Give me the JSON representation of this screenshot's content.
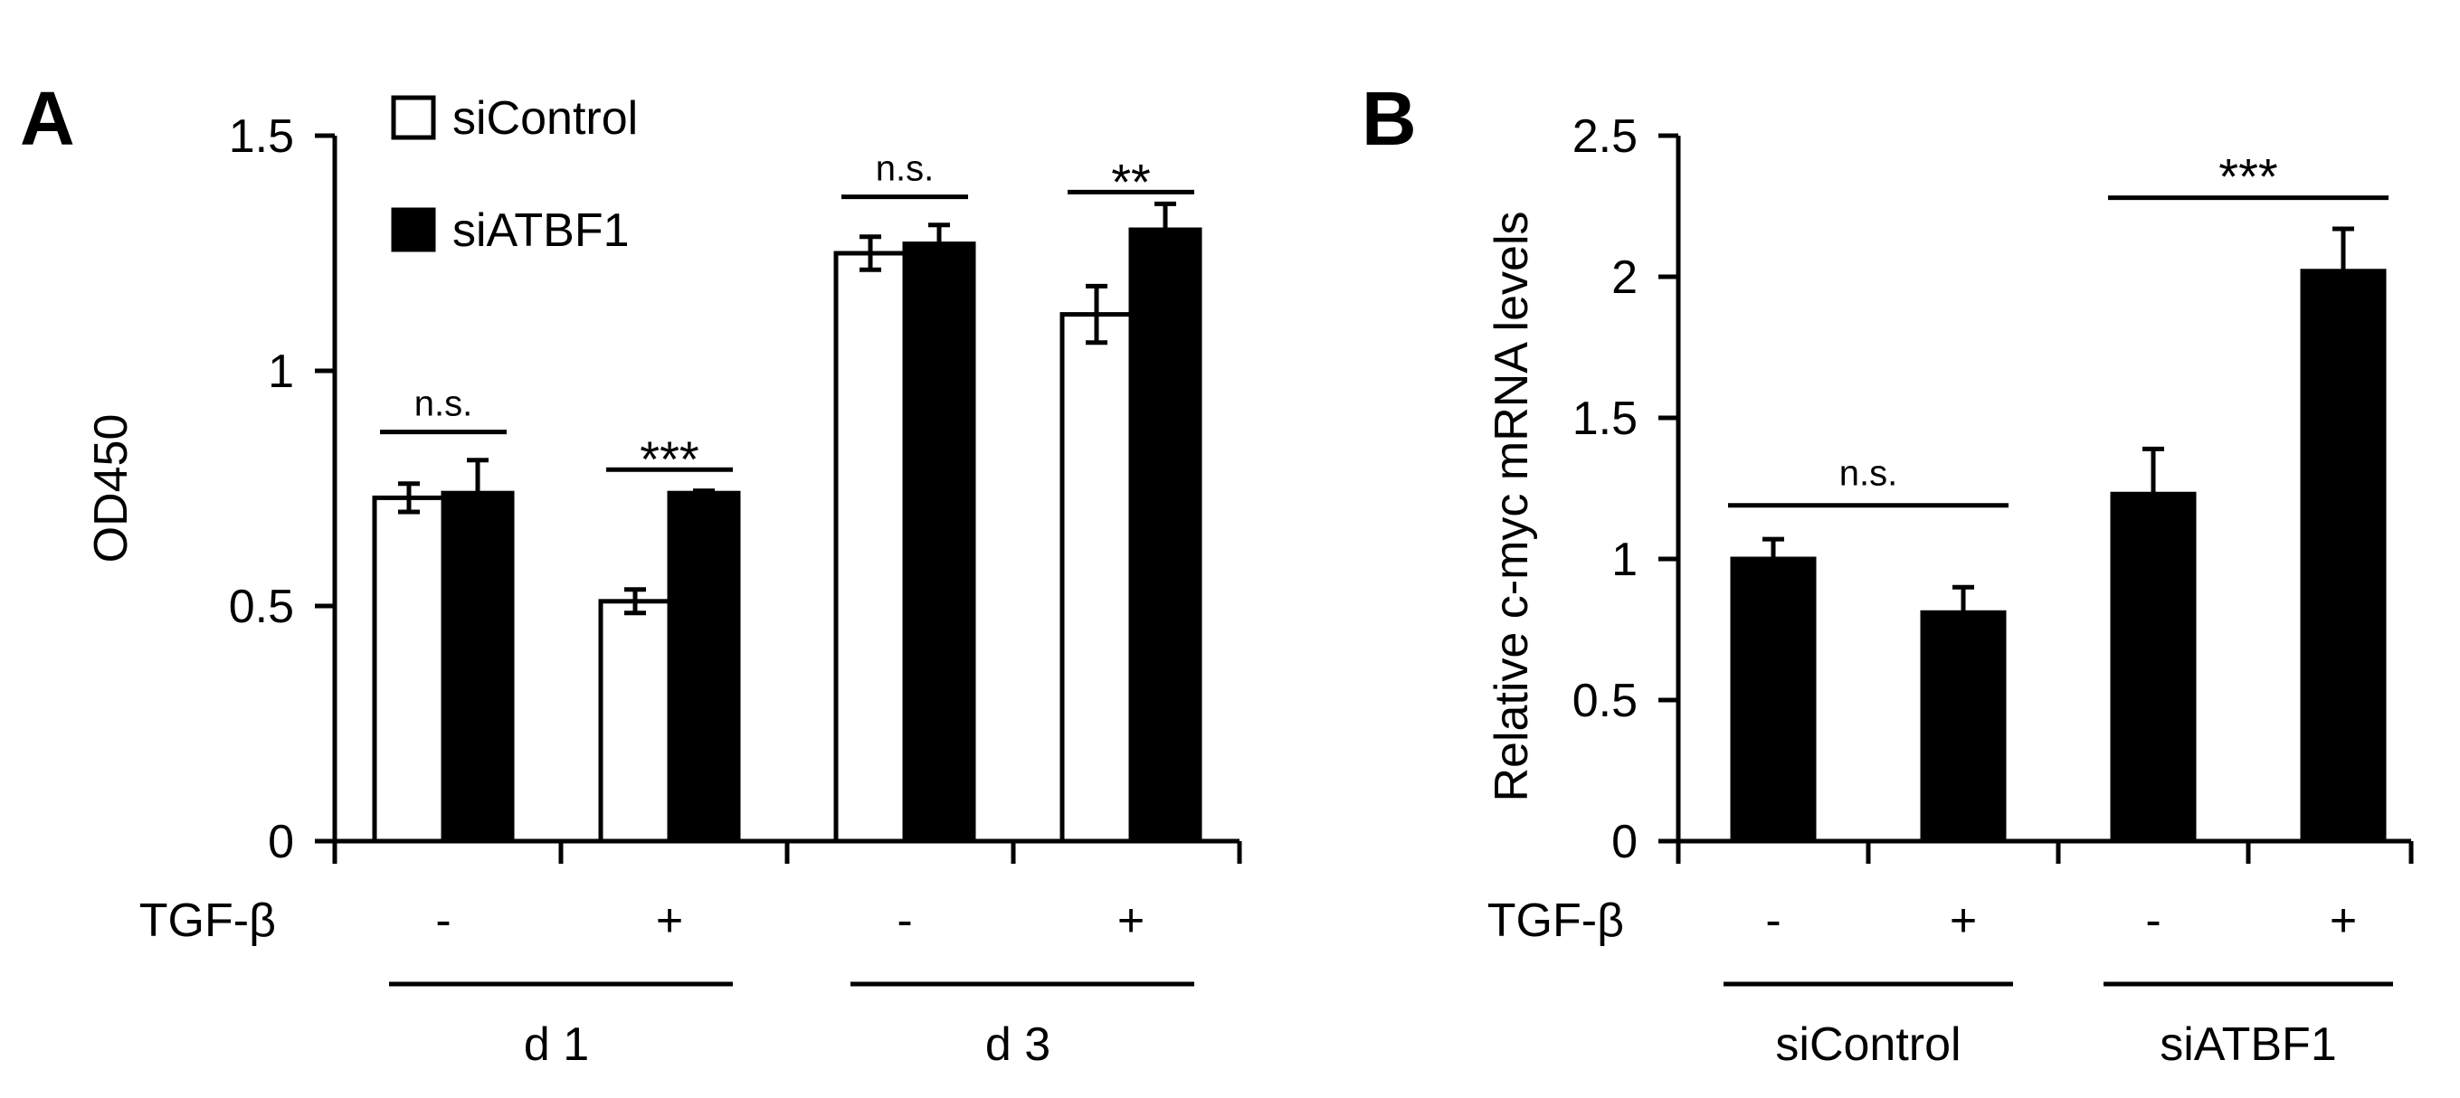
{
  "chart_data": [
    {
      "type": "bar",
      "panel_label": "A",
      "title": "",
      "ylabel": "OD450",
      "ylim": [
        0,
        1.5
      ],
      "yticks": [
        0,
        0.5,
        1,
        1.5
      ],
      "ytick_labels": [
        "0",
        "0.5",
        "1",
        "1.5"
      ],
      "factor_label": "TGF-β",
      "categories": [
        "-",
        "+",
        "-",
        "+"
      ],
      "groups": [
        {
          "label": "d 1",
          "categories": [
            0,
            1
          ]
        },
        {
          "label": "d 3",
          "categories": [
            2,
            3
          ]
        }
      ],
      "series": [
        {
          "name": "siControl",
          "fill": "#ffffff",
          "values": [
            0.73,
            0.51,
            1.25,
            1.12
          ],
          "errors": [
            0.03,
            0.025,
            0.035,
            0.06
          ]
        },
        {
          "name": "siATBF1",
          "fill": "#000000",
          "values": [
            0.74,
            0.74,
            1.27,
            1.3
          ],
          "errors": [
            0.07,
            0.005,
            0.04,
            0.055
          ]
        }
      ],
      "legend": {
        "position": "top-left",
        "entries": [
          "siControl",
          "siATBF1"
        ]
      },
      "significance": [
        {
          "category": 0,
          "label": "n.s.",
          "bar_y": 0.87,
          "style": "ns"
        },
        {
          "category": 1,
          "label": "***",
          "bar_y": 0.79,
          "style": "stars"
        },
        {
          "category": 2,
          "label": "n.s.",
          "bar_y": 1.37,
          "style": "ns"
        },
        {
          "category": 3,
          "label": "**",
          "bar_y": 1.38,
          "style": "stars"
        }
      ]
    },
    {
      "type": "bar",
      "panel_label": "B",
      "title": "",
      "ylabel": "Relative c-myc mRNA levels",
      "ylim": [
        0,
        2.5
      ],
      "yticks": [
        0,
        0.5,
        1,
        1.5,
        2,
        2.5
      ],
      "ytick_labels": [
        "0",
        "0.5",
        "1",
        "1.5",
        "2",
        "2.5"
      ],
      "factor_label": "TGF-β",
      "categories": [
        "-",
        "+",
        "-",
        "+"
      ],
      "groups": [
        {
          "label": "siControl",
          "categories": [
            0,
            1
          ]
        },
        {
          "label": "siATBF1",
          "categories": [
            2,
            3
          ]
        }
      ],
      "series": [
        {
          "name": "c-myc",
          "fill": "#000000",
          "values": [
            1.0,
            0.81,
            1.23,
            2.02
          ],
          "errors": [
            0.07,
            0.09,
            0.16,
            0.15
          ]
        }
      ],
      "significance": [
        {
          "categories": [
            0,
            1
          ],
          "label": "n.s.",
          "bar_y": 1.19,
          "style": "ns"
        },
        {
          "categories": [
            2,
            3
          ],
          "label": "***",
          "bar_y": 2.28,
          "style": "stars"
        }
      ]
    }
  ]
}
